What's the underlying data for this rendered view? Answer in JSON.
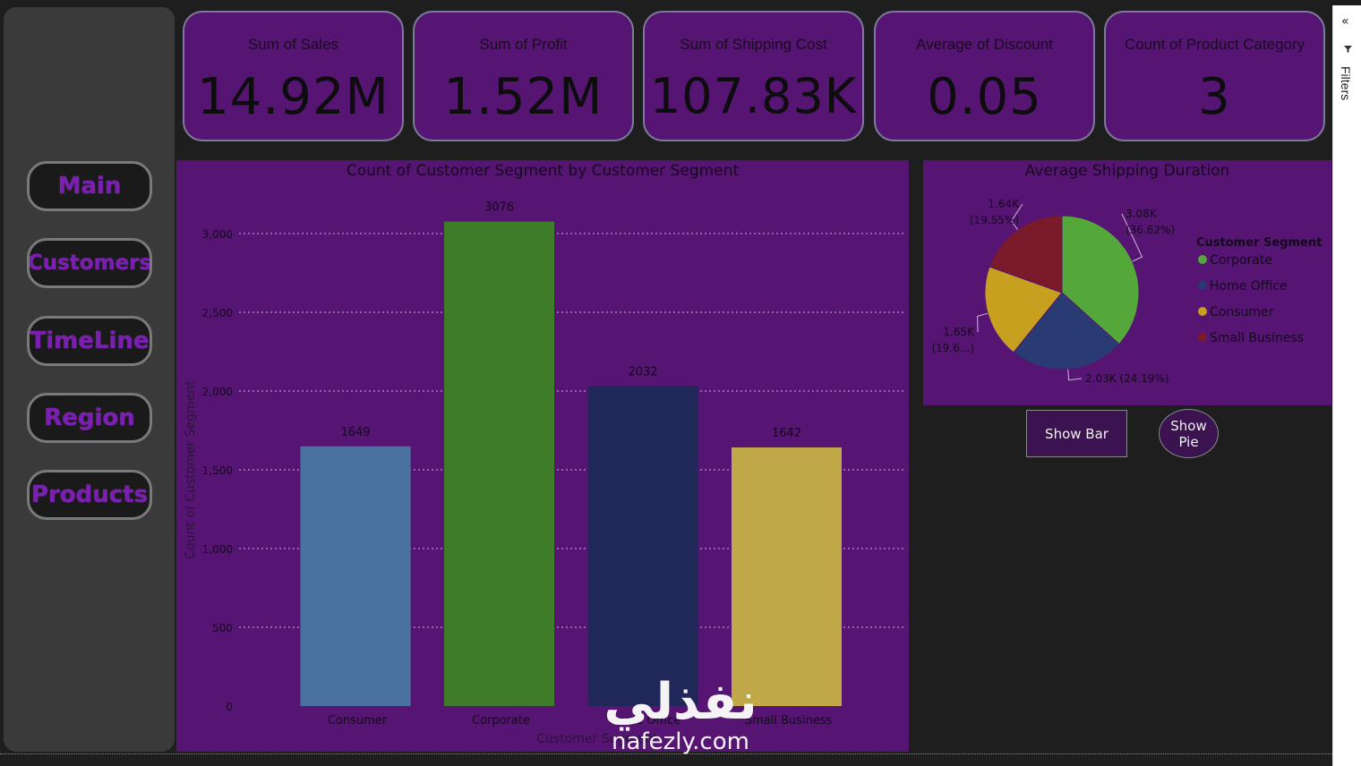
{
  "nav": [
    {
      "label": "Main"
    },
    {
      "label": "Customers"
    },
    {
      "label": "TimeLine"
    },
    {
      "label": "Region"
    },
    {
      "label": "Products"
    }
  ],
  "kpis": [
    {
      "label": "Sum of Sales",
      "value": "14.92M"
    },
    {
      "label": "Sum of Profit",
      "value": "1.52M"
    },
    {
      "label": "Sum of Shipping Cost",
      "value": "107.83K"
    },
    {
      "label": "Average of Discount",
      "value": "0.05"
    },
    {
      "label": "Count of Product Category",
      "value": "3"
    }
  ],
  "buttons": {
    "show_bar": "Show Bar",
    "show_pie_1": "Show",
    "show_pie_2": "Pie"
  },
  "filters": {
    "label": "Filters",
    "collapse_icon": "«",
    "funnel_icon": "funnel-icon"
  },
  "watermark": {
    "arabic": "نفذلي",
    "latin": "nafezly.com"
  },
  "colors": {
    "panel": "#561573",
    "consumer": "#4a72a0",
    "corporate": "#3f7c2a",
    "home_office": "#20285a",
    "small_business": "#c0a848",
    "pie_corporate": "#54a83a",
    "pie_home_office": "#2a3a72",
    "pie_consumer": "#c8a020",
    "pie_small_business": "#7a1a2a"
  },
  "chart_data": [
    {
      "type": "bar",
      "title": "Count of Customer Segment by Customer Segment",
      "xlabel": "Customer Segment",
      "ylabel": "Count of Customer Segment",
      "categories": [
        "Consumer",
        "Corporate",
        "Home Office",
        "Small Business"
      ],
      "values": [
        1649,
        3076,
        2032,
        1642
      ],
      "data_labels": [
        "1649",
        "3076",
        "2032",
        "1642"
      ],
      "ylim": [
        0,
        3000
      ],
      "yticks": [
        0,
        500,
        1000,
        1500,
        2000,
        2500,
        3000
      ],
      "ytick_labels": [
        "0",
        "500",
        "1,000",
        "1,500",
        "2,000",
        "2,500",
        "3,000"
      ],
      "grid": true
    },
    {
      "type": "pie",
      "title": "Average Shipping Duration",
      "legend_title": "Customer Segment",
      "legend_position": "right",
      "slices": [
        {
          "name": "Corporate",
          "value": 3080,
          "label": "3.08K",
          "pct_label": "(36.62%)"
        },
        {
          "name": "Home Office",
          "value": 2030,
          "label": "2.03K (24.19%)",
          "pct_label": ""
        },
        {
          "name": "Consumer",
          "value": 1650,
          "label": "1.65K",
          "pct_label": "(19.6...)"
        },
        {
          "name": "Small Business",
          "value": 1640,
          "label": "1.64K",
          "pct_label": "(19.55%)"
        }
      ]
    }
  ]
}
